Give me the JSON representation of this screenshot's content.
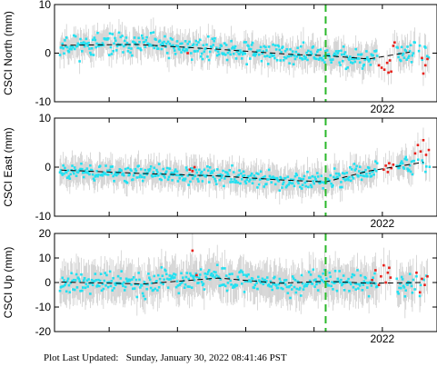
{
  "footer": {
    "text": "Plot Last Updated:   Sunday, January 30, 2022 08:41:46 PST"
  },
  "colors": {
    "data": "#22e0f0",
    "flagged": "#e8201a",
    "errorbar": "#cfcfcf",
    "trend": "#000000",
    "event": "#2ab82a"
  },
  "event_x": 2021.17,
  "x_range": [
    2017.2,
    2022.8
  ],
  "x_tick_label": "2022",
  "chart_data": [
    {
      "type": "scatter",
      "ylabel": "CSCI North (mm)",
      "ylim": [
        -10,
        10
      ],
      "yticks": [
        -10,
        0,
        10
      ],
      "trend": {
        "x": [
          2017.3,
          2018.4,
          2019.6,
          2020.7,
          2021.17,
          2021.8,
          2022.4
        ],
        "y": [
          1.6,
          1.8,
          0.8,
          -0.3,
          -0.5,
          -1.2,
          0.2
        ]
      },
      "noise": 2.2,
      "err": 3.2,
      "seed": 11,
      "flagged": [
        {
          "x": 2019.15,
          "y": 0.0
        },
        {
          "x": 2021.95,
          "y": -2.5
        },
        {
          "x": 2021.99,
          "y": -3.0
        },
        {
          "x": 2022.03,
          "y": -3.4
        },
        {
          "x": 2022.07,
          "y": -2.0
        },
        {
          "x": 2022.09,
          "y": -4.0
        },
        {
          "x": 2022.11,
          "y": -1.5
        },
        {
          "x": 2022.13,
          "y": -3.8
        },
        {
          "x": 2022.16,
          "y": 1.5
        },
        {
          "x": 2022.18,
          "y": 2.2
        },
        {
          "x": 2022.58,
          "y": -1.0
        },
        {
          "x": 2022.6,
          "y": -4.2
        },
        {
          "x": 2022.63,
          "y": -2.5
        },
        {
          "x": 2022.66,
          "y": -1.2
        }
      ]
    },
    {
      "type": "scatter",
      "ylabel": "CSCI East (mm)",
      "ylim": [
        -10,
        10
      ],
      "yticks": [
        -10,
        0,
        10
      ],
      "trend": {
        "x": [
          2017.3,
          2018.5,
          2019.6,
          2020.5,
          2021.17,
          2021.8,
          2022.6
        ],
        "y": [
          -0.6,
          -1.3,
          -1.8,
          -2.6,
          -3.0,
          -0.8,
          1.0
        ]
      },
      "noise": 1.8,
      "err": 3.2,
      "seed": 23,
      "flagged": [
        {
          "x": 2019.18,
          "y": -0.5
        },
        {
          "x": 2019.22,
          "y": -0.8
        },
        {
          "x": 2019.25,
          "y": 0.0
        },
        {
          "x": 2022.02,
          "y": -0.5
        },
        {
          "x": 2022.05,
          "y": 0.3
        },
        {
          "x": 2022.08,
          "y": -1.0
        },
        {
          "x": 2022.1,
          "y": 0.8
        },
        {
          "x": 2022.13,
          "y": -0.2
        },
        {
          "x": 2022.16,
          "y": 0.5
        },
        {
          "x": 2022.48,
          "y": 2.8
        },
        {
          "x": 2022.52,
          "y": 4.5
        },
        {
          "x": 2022.56,
          "y": 3.2
        },
        {
          "x": 2022.6,
          "y": 5.5
        },
        {
          "x": 2022.64,
          "y": 2.5
        },
        {
          "x": 2022.68,
          "y": 3.5
        }
      ]
    },
    {
      "type": "scatter",
      "ylabel": "CSCI Up (mm)",
      "ylim": [
        -20,
        20
      ],
      "yticks": [
        -20,
        -10,
        0,
        10,
        20
      ],
      "trend": {
        "x": [
          2017.3,
          2018.5,
          2019.6,
          2020.5,
          2021.17,
          2021.8,
          2022.6
        ],
        "y": [
          0.2,
          -0.6,
          1.8,
          -0.3,
          0.5,
          -0.3,
          0.0
        ]
      },
      "noise": 4.6,
      "err": 9.0,
      "seed": 37,
      "flagged": [
        {
          "x": 2019.22,
          "y": 13.0
        },
        {
          "x": 2019.28,
          "y": 3.0
        },
        {
          "x": 2021.85,
          "y": 1.0
        },
        {
          "x": 2021.9,
          "y": 5.0
        },
        {
          "x": 2021.95,
          "y": -1.0
        },
        {
          "x": 2021.98,
          "y": 2.5
        },
        {
          "x": 2022.02,
          "y": 7.0
        },
        {
          "x": 2022.05,
          "y": 0.0
        },
        {
          "x": 2022.08,
          "y": 4.0
        },
        {
          "x": 2022.1,
          "y": 6.0
        },
        {
          "x": 2022.12,
          "y": 2.0
        },
        {
          "x": 2022.5,
          "y": 4.0
        },
        {
          "x": 2022.55,
          "y": -4.0
        },
        {
          "x": 2022.58,
          "y": 1.5
        },
        {
          "x": 2022.62,
          "y": -1.0
        },
        {
          "x": 2022.66,
          "y": 2.5
        }
      ]
    }
  ]
}
